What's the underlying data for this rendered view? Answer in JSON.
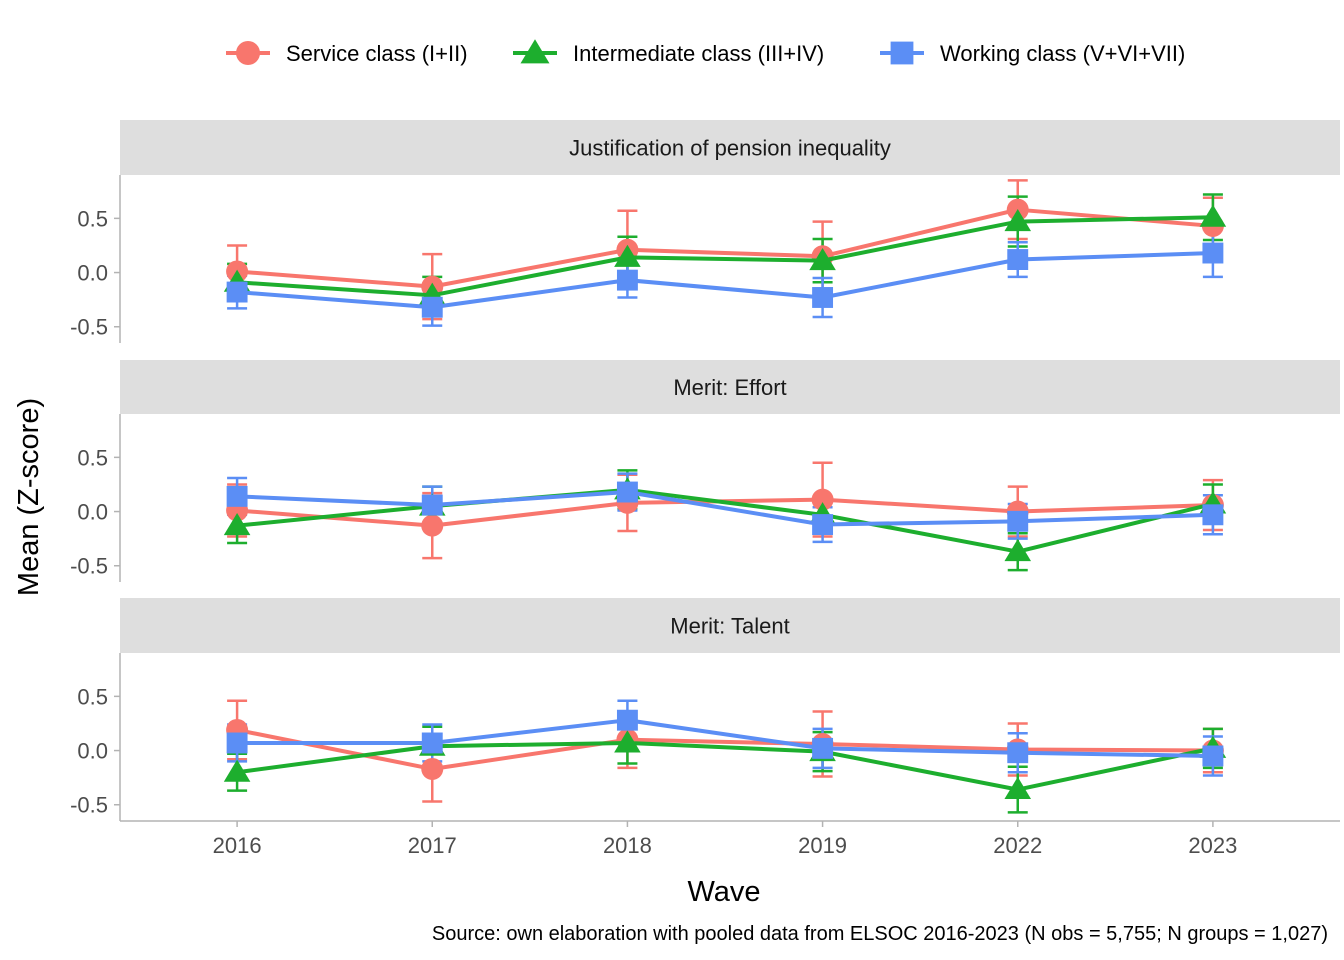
{
  "chart_data": {
    "type": "line",
    "xlabel": "Wave",
    "ylabel": "Mean (Z-score)",
    "caption": "Source: own elaboration with pooled data from ELSOC 2016-2023 (N obs = 5,755; N groups = 1,027)",
    "categories": [
      "2016",
      "2017",
      "2018",
      "2019",
      "2022",
      "2023"
    ],
    "ylim": [
      -0.65,
      0.9
    ],
    "yticks": [
      0.5,
      0.0,
      -0.5
    ],
    "ytick_labels": [
      "0.5",
      "0.0",
      "-0.5"
    ],
    "legend": {
      "position": "top",
      "entries": [
        {
          "name": "Service class (I+II)",
          "color": "#F8766D",
          "shape": "circle"
        },
        {
          "name": "Intermediate class (III+IV)",
          "color": "#1DAE2E",
          "shape": "triangle"
        },
        {
          "name": "Working class (V+VI+VII)",
          "color": "#5B8EF5",
          "shape": "square"
        }
      ]
    },
    "panels": [
      {
        "title": "Justification of pension inequality",
        "series": [
          {
            "name": "Service class (I+II)",
            "values": [
              0.01,
              -0.13,
              0.21,
              0.15,
              0.58,
              0.43
            ],
            "lower": [
              -0.23,
              -0.43,
              -0.14,
              -0.17,
              0.31,
              0.17
            ],
            "upper": [
              0.25,
              0.17,
              0.57,
              0.47,
              0.85,
              0.69
            ]
          },
          {
            "name": "Intermediate class (III+IV)",
            "values": [
              -0.09,
              -0.21,
              0.14,
              0.11,
              0.47,
              0.51
            ],
            "lower": [
              -0.26,
              -0.38,
              -0.05,
              -0.09,
              0.24,
              0.3
            ],
            "upper": [
              0.08,
              -0.04,
              0.33,
              0.31,
              0.7,
              0.72
            ]
          },
          {
            "name": "Working class (V+VI+VII)",
            "values": [
              -0.18,
              -0.32,
              -0.07,
              -0.23,
              0.12,
              0.18
            ],
            "lower": [
              -0.33,
              -0.49,
              -0.23,
              -0.41,
              -0.04,
              -0.04
            ],
            "upper": [
              -0.03,
              -0.15,
              0.09,
              -0.05,
              0.28,
              0.4
            ]
          }
        ]
      },
      {
        "title": "Merit: Effort",
        "series": [
          {
            "name": "Service class (I+II)",
            "values": [
              0.01,
              -0.13,
              0.08,
              0.11,
              0.0,
              0.06
            ],
            "lower": [
              -0.23,
              -0.43,
              -0.18,
              -0.23,
              -0.23,
              -0.17
            ],
            "upper": [
              0.25,
              0.17,
              0.34,
              0.45,
              0.23,
              0.29
            ]
          },
          {
            "name": "Intermediate class (III+IV)",
            "values": [
              -0.13,
              0.05,
              0.2,
              -0.03,
              -0.37,
              0.07
            ],
            "lower": [
              -0.29,
              -0.13,
              0.02,
              -0.19,
              -0.54,
              -0.11
            ],
            "upper": [
              0.03,
              0.23,
              0.38,
              0.13,
              -0.2,
              0.25
            ]
          },
          {
            "name": "Working class (V+VI+VII)",
            "values": [
              0.14,
              0.06,
              0.18,
              -0.12,
              -0.09,
              -0.03
            ],
            "lower": [
              -0.03,
              -0.11,
              0.01,
              -0.28,
              -0.25,
              -0.21
            ],
            "upper": [
              0.31,
              0.23,
              0.35,
              0.04,
              0.07,
              0.15
            ]
          }
        ]
      },
      {
        "title": "Merit: Talent",
        "series": [
          {
            "name": "Service class (I+II)",
            "values": [
              0.19,
              -0.17,
              0.1,
              0.06,
              0.01,
              0.0
            ],
            "lower": [
              -0.08,
              -0.47,
              -0.16,
              -0.24,
              -0.23,
              -0.2
            ],
            "upper": [
              0.46,
              0.13,
              0.36,
              0.36,
              0.25,
              0.2
            ]
          },
          {
            "name": "Intermediate class (III+IV)",
            "values": [
              -0.2,
              0.04,
              0.07,
              -0.01,
              -0.36,
              0.02
            ],
            "lower": [
              -0.37,
              -0.14,
              -0.12,
              -0.19,
              -0.57,
              -0.16
            ],
            "upper": [
              -0.03,
              0.22,
              0.26,
              0.17,
              -0.15,
              0.2
            ]
          },
          {
            "name": "Working class (V+VI+VII)",
            "values": [
              0.07,
              0.07,
              0.28,
              0.02,
              -0.02,
              -0.05
            ],
            "lower": [
              -0.1,
              -0.1,
              0.1,
              -0.16,
              -0.2,
              -0.23
            ],
            "upper": [
              0.24,
              0.24,
              0.46,
              0.2,
              0.16,
              0.13
            ]
          }
        ]
      }
    ]
  }
}
